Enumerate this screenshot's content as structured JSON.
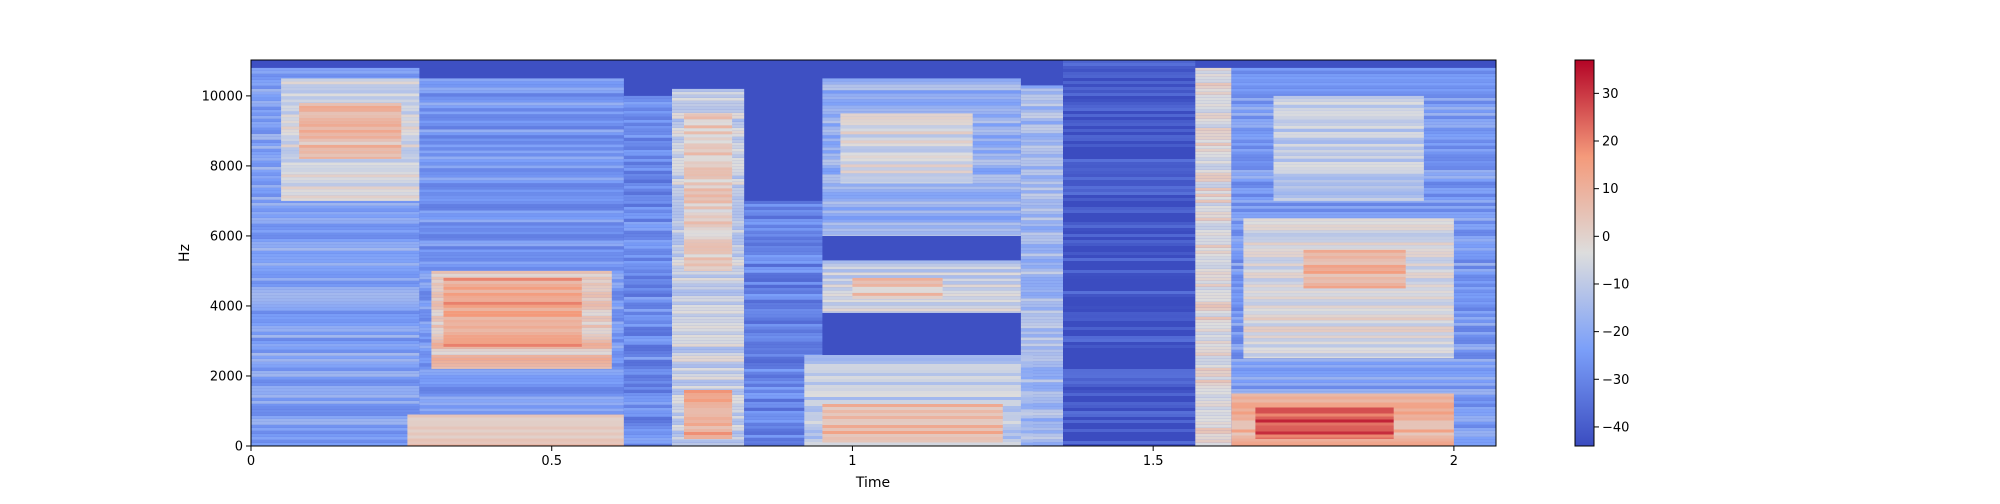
{
  "chart_data": {
    "type": "heatmap",
    "title": "",
    "xlabel": "Time",
    "ylabel": "Hz",
    "xlim": [
      0,
      2.07
    ],
    "ylim": [
      0,
      11025
    ],
    "x_ticks": [
      {
        "value": 0,
        "label": "0"
      },
      {
        "value": 0.5,
        "label": "0.5"
      },
      {
        "value": 1,
        "label": "1"
      },
      {
        "value": 1.5,
        "label": "1.5"
      },
      {
        "value": 2,
        "label": "2"
      }
    ],
    "y_ticks": [
      {
        "value": 0,
        "label": "0"
      },
      {
        "value": 2000,
        "label": "2000"
      },
      {
        "value": 4000,
        "label": "4000"
      },
      {
        "value": 6000,
        "label": "6000"
      },
      {
        "value": 8000,
        "label": "8000"
      },
      {
        "value": 10000,
        "label": "10000"
      }
    ],
    "colormap": "coolwarm",
    "value_range": [
      -44,
      37
    ],
    "colorbar_ticks": [
      {
        "value": 30,
        "label": "30"
      },
      {
        "value": 20,
        "label": "20"
      },
      {
        "value": 10,
        "label": "10"
      },
      {
        "value": 0,
        "label": "0"
      },
      {
        "value": -10,
        "label": "−10"
      },
      {
        "value": -20,
        "label": "−20"
      },
      {
        "value": -30,
        "label": "−30"
      },
      {
        "value": -40,
        "label": "−40"
      }
    ],
    "energy_regions": [
      {
        "t0": 0.0,
        "t1": 0.28,
        "f0": 0,
        "f1": 10800,
        "level": -22
      },
      {
        "t0": 0.05,
        "t1": 0.28,
        "f0": 7000,
        "f1": 10500,
        "level": -5
      },
      {
        "t0": 0.08,
        "t1": 0.25,
        "f0": 8200,
        "f1": 9800,
        "level": 6
      },
      {
        "t0": 0.28,
        "t1": 0.62,
        "f0": 0,
        "f1": 10500,
        "level": -25
      },
      {
        "t0": 0.3,
        "t1": 0.6,
        "f0": 2200,
        "f1": 5000,
        "level": 5
      },
      {
        "t0": 0.32,
        "t1": 0.55,
        "f0": 2800,
        "f1": 4800,
        "level": 14
      },
      {
        "t0": 0.26,
        "t1": 0.62,
        "f0": 0,
        "f1": 900,
        "level": 6
      },
      {
        "t0": 0.62,
        "t1": 0.7,
        "f0": 0,
        "f1": 10000,
        "level": -28
      },
      {
        "t0": 0.7,
        "t1": 0.82,
        "f0": 0,
        "f1": 10200,
        "level": -8
      },
      {
        "t0": 0.72,
        "t1": 0.8,
        "f0": 200,
        "f1": 1600,
        "level": 12
      },
      {
        "t0": 0.72,
        "t1": 0.8,
        "f0": 5000,
        "f1": 9500,
        "level": 2
      },
      {
        "t0": 0.82,
        "t1": 0.95,
        "f0": 0,
        "f1": 7000,
        "level": -30
      },
      {
        "t0": 0.95,
        "t1": 1.28,
        "f0": 6000,
        "f1": 10500,
        "level": -18
      },
      {
        "t0": 0.98,
        "t1": 1.2,
        "f0": 7500,
        "f1": 9500,
        "level": -5
      },
      {
        "t0": 0.95,
        "t1": 1.28,
        "f0": 3800,
        "f1": 5300,
        "level": -8
      },
      {
        "t0": 1.0,
        "t1": 1.15,
        "f0": 4200,
        "f1": 4800,
        "level": 4
      },
      {
        "t0": 0.92,
        "t1": 1.3,
        "f0": 0,
        "f1": 2600,
        "level": -10
      },
      {
        "t0": 0.95,
        "t1": 1.25,
        "f0": 100,
        "f1": 1200,
        "level": 8
      },
      {
        "t0": 1.28,
        "t1": 1.35,
        "f0": 0,
        "f1": 10300,
        "level": -15
      },
      {
        "t0": 1.35,
        "t1": 1.57,
        "f0": 0,
        "f1": 11025,
        "level": -42
      },
      {
        "t0": 1.57,
        "t1": 1.63,
        "f0": 0,
        "f1": 10800,
        "level": -2
      },
      {
        "t0": 1.63,
        "t1": 2.07,
        "f0": 0,
        "f1": 10800,
        "level": -24
      },
      {
        "t0": 1.65,
        "t1": 2.0,
        "f0": 2500,
        "f1": 6500,
        "level": -4
      },
      {
        "t0": 1.75,
        "t1": 1.92,
        "f0": 4500,
        "f1": 5600,
        "level": 10
      },
      {
        "t0": 1.63,
        "t1": 2.0,
        "f0": 0,
        "f1": 1500,
        "level": 10
      },
      {
        "t0": 1.67,
        "t1": 1.9,
        "f0": 200,
        "f1": 1100,
        "level": 26
      },
      {
        "t0": 1.7,
        "t1": 1.95,
        "f0": 7000,
        "f1": 10000,
        "level": -10
      }
    ]
  }
}
